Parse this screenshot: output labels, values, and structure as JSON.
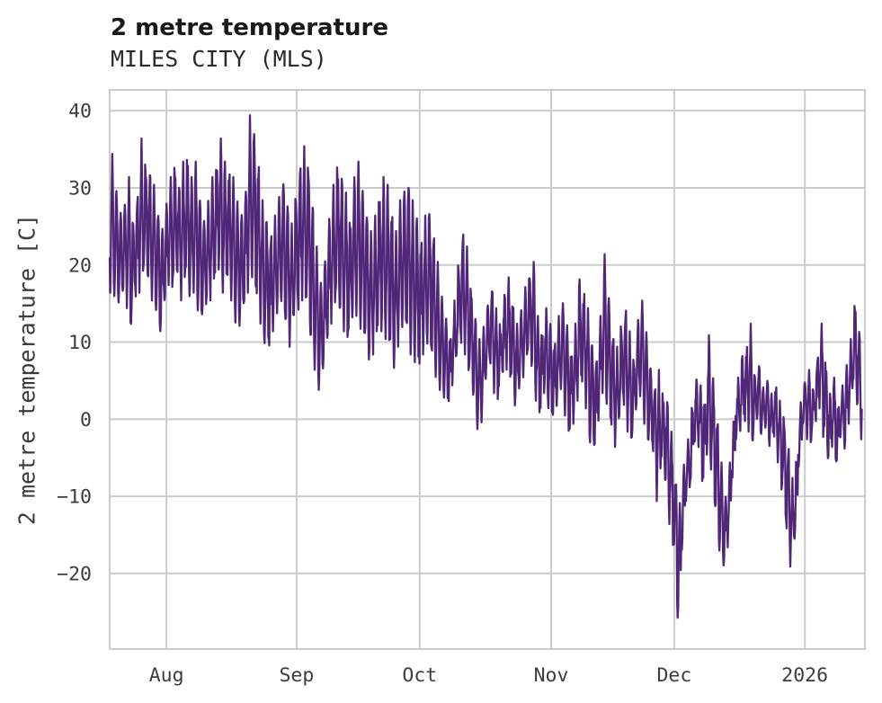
{
  "header": {
    "title": "2 metre temperature",
    "subtitle": "MILES CITY (MLS)"
  },
  "chart_data": {
    "type": "line",
    "title": "2 metre temperature",
    "subtitle": "MILES CITY (MLS)",
    "ylabel": "2 metre temperature [C]",
    "xlabel": "",
    "units": "C",
    "grid": true,
    "legend_position": "none",
    "line_color": "#4f2678",
    "grid_color": "#cbcbcb",
    "text_color": "#3c3c3c",
    "yticks": [
      40,
      30,
      20,
      10,
      0,
      -10,
      -20
    ],
    "y_tick_labels": [
      "40",
      "30",
      "20",
      "10",
      "0",
      "−10",
      "−20"
    ],
    "ylim": [
      -29.8,
      42.7
    ],
    "x_tick_labels": [
      "Aug",
      "Sep",
      "Oct",
      "Nov",
      "Dec",
      "2026"
    ],
    "x_tick_days": [
      13.6,
      44.8,
      74.3,
      105.8,
      135.3,
      166.6
    ],
    "x_domain_days": [
      0,
      181
    ],
    "series": [
      {
        "name": "2 metre temperature",
        "description": "noisy sub-daily temperature trace; values below are estimated daily low/high envelope read from the plot, one pair per day from mid-July through mid-January",
        "daily_high": [
          34,
          30,
          27,
          28,
          31,
          26,
          29,
          36,
          33,
          32,
          30,
          27,
          25,
          28,
          31,
          33,
          30,
          33,
          34,
          31,
          33,
          29,
          26,
          28,
          31,
          33,
          36,
          33,
          32,
          31,
          28,
          27,
          30,
          39,
          37,
          33,
          28,
          26,
          24,
          26,
          29,
          31,
          28,
          25,
          29,
          33,
          35,
          33,
          28,
          22,
          18,
          21,
          26,
          30,
          33,
          31,
          29,
          26,
          31,
          33,
          30,
          27,
          24,
          26,
          29,
          31,
          30,
          27,
          24,
          28,
          30,
          31,
          28,
          26,
          23,
          26,
          27,
          24,
          20,
          16,
          13,
          11,
          15,
          20,
          24,
          22,
          17,
          13,
          10,
          12,
          15,
          17,
          14,
          12,
          16,
          18,
          15,
          12,
          14,
          17,
          19,
          20,
          13,
          11,
          14,
          12,
          10,
          13,
          15,
          12,
          9,
          12,
          18,
          16,
          14,
          10,
          8,
          13,
          21,
          16,
          11,
          9,
          12,
          14,
          11,
          8,
          13,
          15,
          11,
          7,
          4,
          6,
          3,
          2,
          -2,
          -8,
          -11,
          -6,
          -3,
          2,
          5,
          4,
          2,
          10.5,
          5,
          0,
          -6,
          -10,
          -6,
          0,
          5,
          8,
          9,
          12,
          6,
          7,
          4,
          5,
          3,
          4,
          2,
          0,
          -4,
          -8,
          -5,
          2,
          5,
          6,
          4,
          8,
          12,
          7,
          3,
          5,
          2,
          4,
          7,
          10,
          15,
          11,
          8
        ],
        "daily_low": [
          17,
          16,
          15,
          16,
          15,
          12,
          16,
          17,
          19,
          18,
          16,
          14,
          11,
          15,
          18,
          17,
          19,
          16,
          18,
          16,
          17,
          14,
          13,
          15,
          16,
          18,
          20,
          17,
          18,
          16,
          13,
          12,
          14,
          17,
          19,
          16,
          13,
          10,
          9,
          12,
          14,
          15,
          12,
          10,
          13,
          14,
          16,
          15,
          10,
          7,
          4,
          6,
          10,
          13,
          15,
          14,
          12,
          10,
          13,
          14,
          12,
          10,
          8,
          9,
          11,
          12,
          11,
          9,
          7,
          10,
          12,
          11,
          9,
          8,
          7,
          9,
          10,
          8,
          6,
          4,
          3,
          2,
          5,
          8,
          10,
          9,
          6,
          3,
          -1,
          0,
          5,
          7,
          4,
          3,
          6,
          7,
          5,
          2,
          4,
          6,
          8,
          7,
          3,
          1,
          4,
          2,
          0,
          2,
          4,
          1,
          -2,
          0,
          3,
          5,
          2,
          -3,
          -4,
          0,
          4,
          2,
          -1,
          -3,
          0,
          2,
          -1,
          -3,
          1,
          3,
          0,
          -3,
          -4,
          -10,
          -6,
          -8,
          -13,
          -17,
          -26,
          -17,
          -10,
          -9,
          -3,
          -3,
          -8,
          -4,
          -6,
          -12,
          -17,
          -19,
          -16,
          -8,
          -2,
          -1,
          0,
          -1,
          -3,
          0,
          -2,
          -1,
          -3,
          -2,
          -5,
          -9,
          -14,
          -18.5,
          -16,
          -6,
          -1,
          -2,
          -3,
          0,
          2,
          -2,
          -5,
          -3,
          -6,
          -2,
          -4,
          0,
          4,
          2,
          -2
        ]
      }
    ]
  }
}
